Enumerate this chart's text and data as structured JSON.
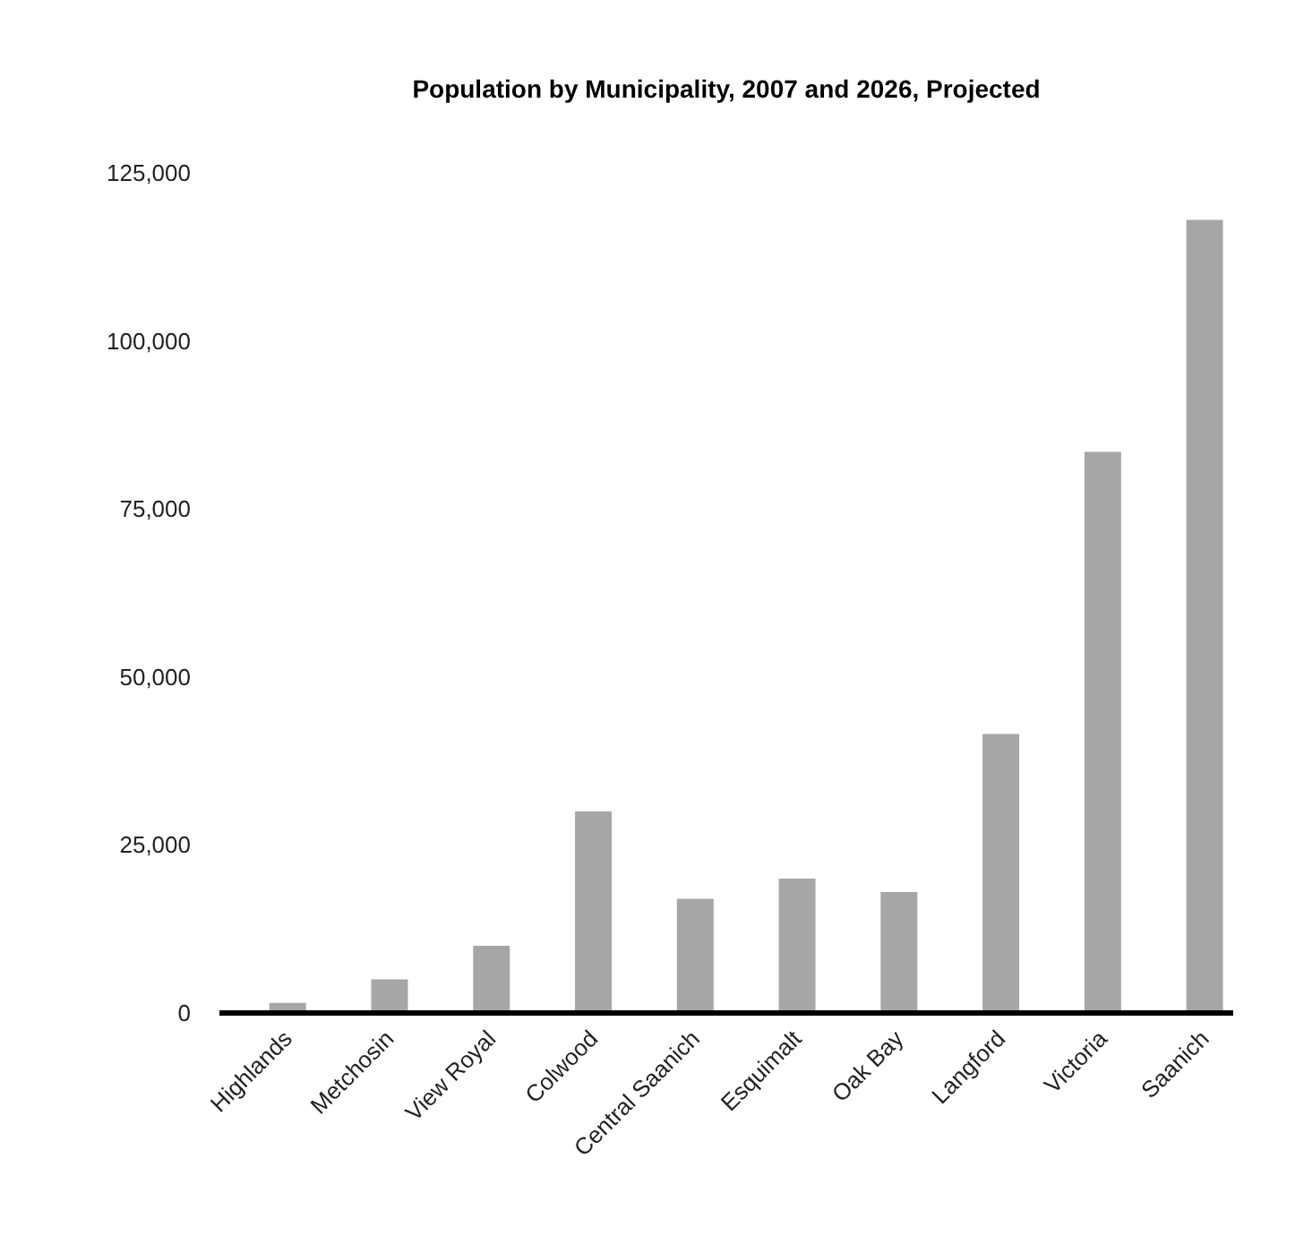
{
  "chart_data": {
    "type": "bar",
    "title": "Population by Municipality, 2007 and 2026, Projected",
    "categories": [
      "Highlands",
      "Metchosin",
      "View Royal",
      "Colwood",
      "Central Saanich",
      "Esquimalt",
      "Oak Bay",
      "Langford",
      "Victoria",
      "Saanich"
    ],
    "values": [
      1500,
      5000,
      10000,
      30000,
      17000,
      20000,
      18000,
      41500,
      83500,
      118000
    ],
    "color": "#a6a6a6",
    "ylim": [
      0,
      125000
    ],
    "yticks": [
      {
        "value": 0,
        "label": "0"
      },
      {
        "value": 25000,
        "label": "25,000"
      },
      {
        "value": 50000,
        "label": "50,000"
      },
      {
        "value": 75000,
        "label": "75,000"
      },
      {
        "value": 100000,
        "label": "100,000"
      },
      {
        "value": 125000,
        "label": "125,000"
      }
    ]
  }
}
